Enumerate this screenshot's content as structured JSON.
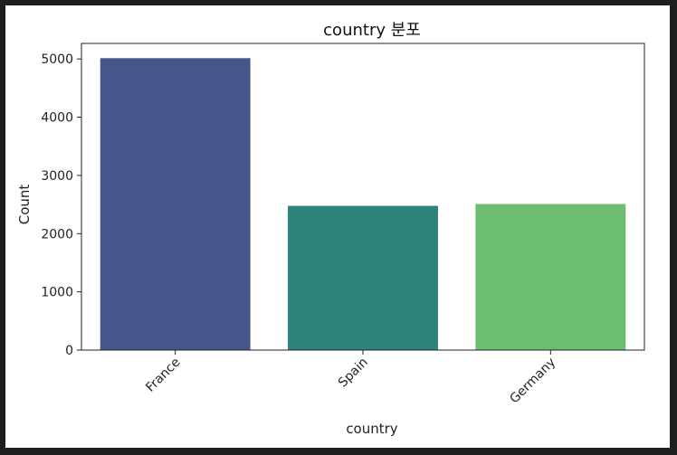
{
  "chart_data": {
    "type": "bar",
    "title": "country 분포",
    "xlabel": "country",
    "ylabel": "Count",
    "categories": [
      "France",
      "Spain",
      "Germany"
    ],
    "values": [
      5014,
      2477,
      2509
    ],
    "colors": [
      "#46568a",
      "#2e847d",
      "#6cbd6e"
    ],
    "ylim": [
      0,
      5267
    ],
    "yticks": [
      "0",
      "1000",
      "2000",
      "3000",
      "4000",
      "5000"
    ],
    "grid": false,
    "legend": "none"
  }
}
